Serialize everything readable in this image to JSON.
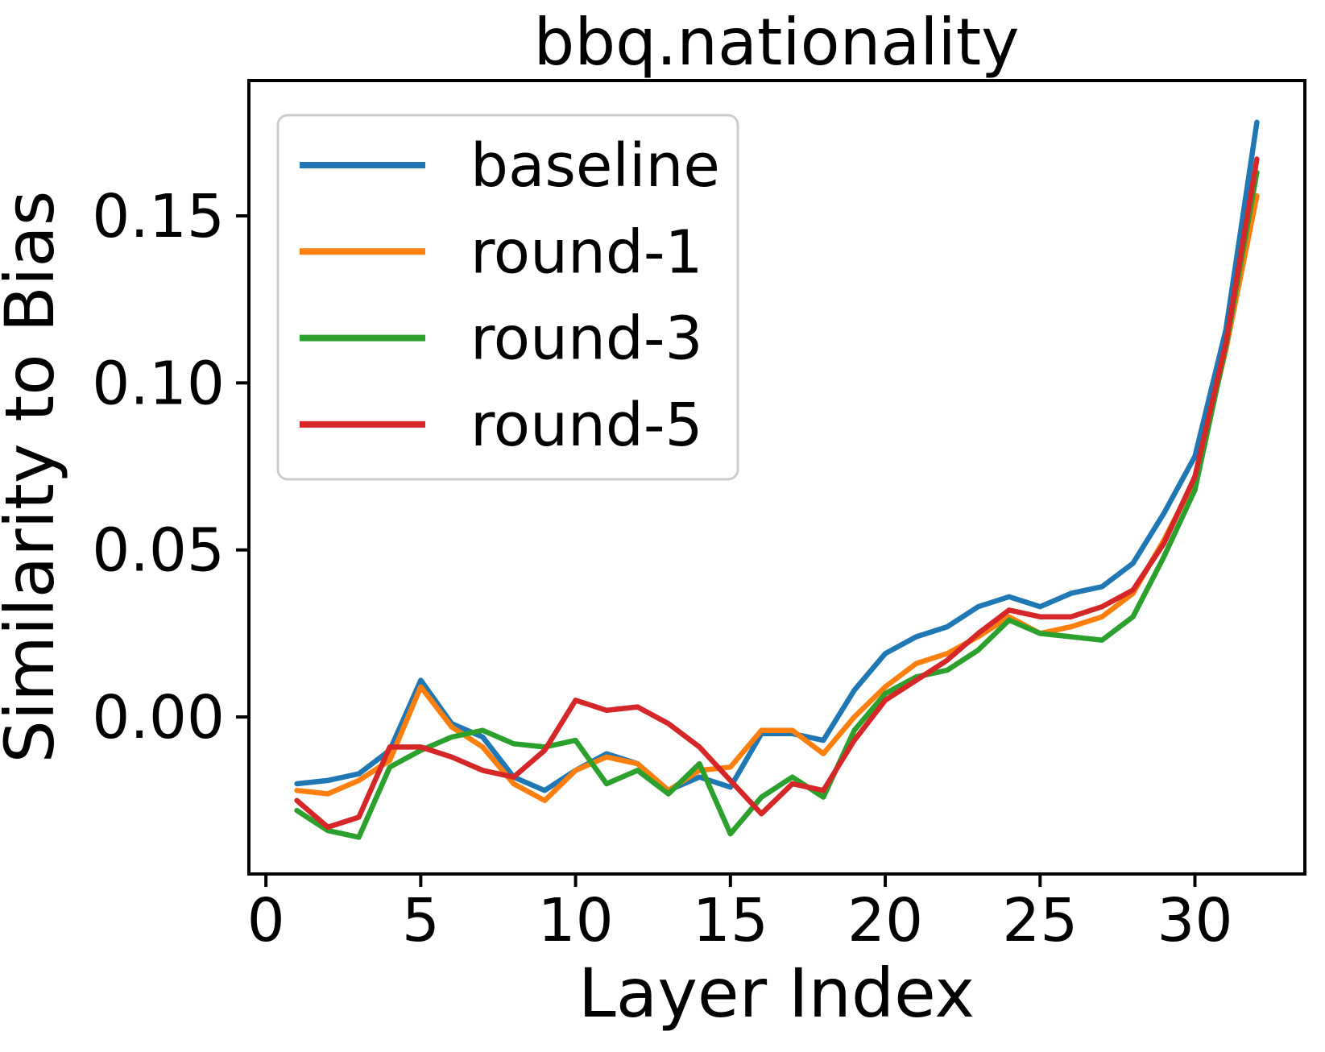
{
  "figure": {
    "title": "bbq.nationality",
    "xlabel": "Layer Index",
    "ylabel": "Similarity to Bias",
    "background": "#ffffff",
    "text_color": "#000000",
    "spine_color": "#000000",
    "legend_border_color": "#cccccc"
  },
  "chart_data": {
    "type": "line",
    "title": "bbq.nationality",
    "xlabel": "Layer Index",
    "ylabel": "Similarity to Bias",
    "x": [
      1,
      2,
      3,
      4,
      5,
      6,
      7,
      8,
      9,
      10,
      11,
      12,
      13,
      14,
      15,
      16,
      17,
      18,
      19,
      20,
      21,
      22,
      23,
      24,
      25,
      26,
      27,
      28,
      29,
      30,
      31,
      32
    ],
    "series": [
      {
        "name": "baseline",
        "color": "#1f77b4",
        "values": [
          -0.02,
          -0.019,
          -0.017,
          -0.01,
          0.011,
          -0.002,
          -0.006,
          -0.018,
          -0.022,
          -0.016,
          -0.011,
          -0.014,
          -0.022,
          -0.018,
          -0.021,
          -0.005,
          -0.005,
          -0.007,
          0.008,
          0.019,
          0.024,
          0.027,
          0.033,
          0.036,
          0.033,
          0.037,
          0.039,
          0.046,
          0.061,
          0.078,
          0.116,
          0.178
        ]
      },
      {
        "name": "round-1",
        "color": "#ff7f0e",
        "values": [
          -0.022,
          -0.023,
          -0.019,
          -0.013,
          0.009,
          -0.003,
          -0.009,
          -0.02,
          -0.025,
          -0.016,
          -0.012,
          -0.014,
          -0.022,
          -0.016,
          -0.015,
          -0.004,
          -0.004,
          -0.011,
          0.0,
          0.009,
          0.016,
          0.019,
          0.024,
          0.03,
          0.025,
          0.027,
          0.03,
          0.037,
          0.053,
          0.071,
          0.11,
          0.156
        ]
      },
      {
        "name": "round-3",
        "color": "#2ca02c",
        "values": [
          -0.028,
          -0.034,
          -0.036,
          -0.015,
          -0.01,
          -0.006,
          -0.004,
          -0.008,
          -0.009,
          -0.007,
          -0.02,
          -0.016,
          -0.023,
          -0.014,
          -0.035,
          -0.024,
          -0.018,
          -0.024,
          -0.004,
          0.007,
          0.012,
          0.014,
          0.02,
          0.029,
          0.025,
          0.024,
          0.023,
          0.03,
          0.048,
          0.068,
          0.111,
          0.163
        ]
      },
      {
        "name": "round-5",
        "color": "#d62728",
        "values": [
          -0.025,
          -0.033,
          -0.03,
          -0.009,
          -0.009,
          -0.012,
          -0.016,
          -0.018,
          -0.01,
          0.005,
          0.002,
          0.003,
          -0.002,
          -0.009,
          -0.019,
          -0.029,
          -0.02,
          -0.022,
          -0.007,
          0.005,
          0.011,
          0.017,
          0.025,
          0.032,
          0.03,
          0.03,
          0.033,
          0.038,
          0.052,
          0.072,
          0.112,
          0.167
        ]
      }
    ],
    "xlim": [
      -0.55,
      33.55
    ],
    "ylim": [
      -0.047,
      0.1905
    ],
    "xticks": [
      0,
      5,
      10,
      15,
      20,
      25,
      30
    ],
    "xtick_labels": [
      "0",
      "5",
      "10",
      "15",
      "20",
      "25",
      "30"
    ],
    "yticks": [
      0.0,
      0.05,
      0.1,
      0.15
    ],
    "ytick_labels": [
      "0.00",
      "0.05",
      "0.10",
      "0.15"
    ],
    "legend": {
      "position": "upper-left",
      "entries": [
        "baseline",
        "round-1",
        "round-3",
        "round-5"
      ]
    },
    "grid": false
  }
}
